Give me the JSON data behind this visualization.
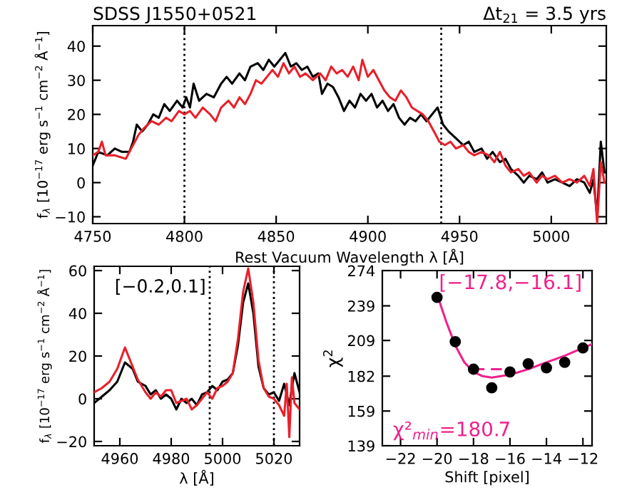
{
  "chart_data": [
    {
      "type": "line",
      "title": "SDSS J1550+0521",
      "subtitle": "Δt$_{21}$ = 3.5 yrs",
      "xlabel": "Rest Vacuum Wavelength λ [Å]",
      "ylabel": "f$_{λ}$ [10$^{−17}$ erg s$^{−1}$ cm$^{−2}$ Å$^{−1}$]",
      "xlim": [
        4750,
        5030
      ],
      "xticks": [
        4750,
        4800,
        4850,
        4900,
        4950,
        5000
      ],
      "ylim": [
        -12,
        46
      ],
      "yticks": [
        -10,
        0,
        10,
        20,
        30,
        40
      ],
      "grid": false,
      "line_style": "solid",
      "marker": "none",
      "ref_lines": [
        {
          "axis": "x",
          "value": 4800,
          "line_style": "dotted",
          "color": "#000000"
        },
        {
          "axis": "x",
          "value": 4940,
          "line_style": "dotted",
          "color": "#000000"
        }
      ],
      "series": [
        {
          "color": "#000000",
          "x": [
            4750,
            4753,
            4758,
            4762,
            4766,
            4770,
            4772,
            4774,
            4777,
            4780,
            4783,
            4786,
            4789,
            4792,
            4796,
            4799,
            4801,
            4803,
            4805,
            4808,
            4812,
            4816,
            4820,
            4823,
            4826,
            4830,
            4833,
            4836,
            4840,
            4843,
            4846,
            4849,
            4852,
            4855,
            4858,
            4861,
            4864,
            4867,
            4870,
            4873,
            4875,
            4878,
            4881,
            4884,
            4887,
            4890,
            4893,
            4896,
            4899,
            4902,
            4905,
            4908,
            4911,
            4914,
            4917,
            4920,
            4923,
            4926,
            4929,
            4932,
            4935,
            4938,
            4941,
            4944,
            4948,
            4952,
            4955,
            4958,
            4962,
            4965,
            4968,
            4972,
            4975,
            4978,
            4982,
            4985,
            4988,
            4992,
            4995,
            4998,
            5002,
            5006,
            5010,
            5014,
            5018,
            5021,
            5023,
            5025,
            5027,
            5029
          ],
          "values": [
            5,
            9,
            8,
            10,
            9,
            9,
            12,
            17,
            15,
            17,
            20,
            19,
            23,
            21,
            24,
            22,
            25,
            22,
            29,
            24,
            26,
            25,
            29,
            31,
            29,
            32,
            30,
            34,
            35,
            33,
            36,
            34,
            36,
            38,
            34,
            35,
            33,
            34,
            31,
            32,
            26,
            29,
            28,
            25,
            21,
            24,
            22,
            26,
            24,
            26,
            22,
            24,
            21,
            23,
            19,
            17,
            19,
            18,
            20,
            18,
            20,
            22,
            17,
            15,
            13,
            11,
            12,
            9,
            10,
            7,
            9,
            6,
            7,
            4,
            2,
            0,
            2,
            1,
            3,
            0,
            1,
            0,
            -1,
            1,
            0,
            -3,
            1,
            -10,
            12,
            3
          ]
        },
        {
          "color": "#e8202a",
          "x": [
            4750,
            4753,
            4755,
            4757,
            4762,
            4768,
            4771,
            4775,
            4778,
            4782,
            4786,
            4790,
            4793,
            4797,
            4800,
            4803,
            4806,
            4810,
            4814,
            4817,
            4820,
            4824,
            4827,
            4830,
            4833,
            4836,
            4839,
            4842,
            4845,
            4848,
            4851,
            4854,
            4857,
            4860,
            4863,
            4866,
            4870,
            4874,
            4877,
            4880,
            4883,
            4886,
            4889,
            4892,
            4895,
            4897,
            4900,
            4903,
            4906,
            4909,
            4912,
            4915,
            4918,
            4921,
            4924,
            4927,
            4930,
            4933,
            4936,
            4939,
            4942,
            4945,
            4948,
            4952,
            4955,
            4958,
            4962,
            4966,
            4969,
            4972,
            4975,
            4978,
            4982,
            4985,
            4988,
            4992,
            4995,
            4998,
            5002,
            5006,
            5010,
            5014,
            5018,
            5021,
            5023,
            5025,
            5027,
            5029
          ],
          "values": [
            8,
            9,
            12,
            8,
            8,
            7,
            10,
            14,
            16,
            18,
            17,
            19,
            18,
            21,
            20,
            21,
            19,
            22,
            20,
            18,
            22,
            24,
            22,
            25,
            23,
            26,
            30,
            29,
            31,
            33,
            31,
            35,
            32,
            34,
            31,
            32,
            30,
            32,
            30,
            34,
            32,
            33,
            31,
            34,
            30,
            36,
            31,
            33,
            30,
            27,
            25,
            24,
            27,
            25,
            22,
            21,
            20,
            18,
            15,
            12,
            11,
            12,
            10,
            11,
            9,
            8,
            9,
            8,
            6,
            9,
            5,
            3,
            4,
            2,
            3,
            0,
            2,
            1,
            2,
            0,
            1,
            0,
            2,
            -1,
            4,
            -12,
            6,
            0
          ]
        }
      ]
    },
    {
      "type": "line",
      "xlabel": "λ [Å]",
      "ylabel": "f$_{λ}$ [10$^{−17}$ erg s$^{−1}$ cm$^{−2}$ Å$^{−1}$]",
      "xlim": [
        4950,
        5030
      ],
      "xticks": [
        4960,
        4980,
        5000,
        5020
      ],
      "ylim": [
        -22,
        62
      ],
      "yticks": [
        -20,
        0,
        20,
        40,
        60
      ],
      "grid": false,
      "line_style": "solid",
      "marker": "none",
      "annotations": [
        "[−0.2,0.1]"
      ],
      "ref_lines": [
        {
          "axis": "x",
          "value": 4995,
          "line_style": "dotted",
          "color": "#000000"
        },
        {
          "axis": "x",
          "value": 5020,
          "line_style": "dotted",
          "color": "#000000"
        }
      ],
      "series": [
        {
          "color": "#000000",
          "x": [
            4950,
            4953,
            4956,
            4959,
            4962,
            4965,
            4967,
            4970,
            4972,
            4974,
            4976,
            4978,
            4980,
            4982,
            4984,
            4986,
            4988,
            4990,
            4992,
            4994,
            4996,
            4998,
            5000,
            5002,
            5004,
            5006,
            5008,
            5010,
            5012,
            5014,
            5016,
            5018,
            5020,
            5022,
            5024,
            5026,
            5027,
            5028,
            5030
          ],
          "values": [
            -2,
            1,
            4,
            8,
            17,
            14,
            8,
            6,
            2,
            4,
            0,
            2,
            0,
            -5,
            0,
            -2,
            0,
            -3,
            2,
            3,
            6,
            4,
            8,
            9,
            12,
            25,
            45,
            54,
            40,
            15,
            5,
            2,
            3,
            -1,
            7,
            -3,
            5,
            12,
            3
          ]
        },
        {
          "color": "#e8202a",
          "x": [
            4950,
            4953,
            4956,
            4959,
            4962,
            4965,
            4967,
            4970,
            4972,
            4974,
            4976,
            4978,
            4980,
            4982,
            4984,
            4986,
            4988,
            4990,
            4992,
            4994,
            4996,
            4998,
            5000,
            5002,
            5004,
            5006,
            5008,
            5010,
            5012,
            5014,
            5016,
            5018,
            5020,
            5022,
            5024,
            5025,
            5026,
            5027,
            5028,
            5030
          ],
          "values": [
            3,
            5,
            8,
            14,
            24,
            15,
            9,
            3,
            0,
            3,
            1,
            4,
            4,
            -2,
            -1,
            0,
            -5,
            -3,
            0,
            3,
            0,
            5,
            6,
            8,
            12,
            28,
            50,
            61,
            45,
            18,
            5,
            1,
            0,
            -3,
            -8,
            7,
            -18,
            10,
            -2,
            -5
          ]
        }
      ]
    },
    {
      "type": "scatter",
      "xlabel": "Shift [pixel]",
      "ylabel": "χ$^{2}$",
      "log": "y",
      "xlim": [
        -23,
        -11.5
      ],
      "xticks": [
        {
          "value": -22,
          "label": "−22"
        },
        {
          "value": -20,
          "label": "−20"
        },
        {
          "value": -18,
          "label": "−18"
        },
        {
          "value": -16,
          "label": "−16"
        },
        {
          "value": -14,
          "label": "−14"
        },
        {
          "value": -12,
          "label": "−12"
        }
      ],
      "ylim": [
        139,
        274
      ],
      "yticks": [
        139,
        159,
        182,
        209,
        239,
        274
      ],
      "grid": false,
      "annotations": [
        "[−17.8,−16.1]",
        "χ²$_{min}$=180.7"
      ],
      "series": [
        {
          "type": "scatter",
          "color": "#000000",
          "marker": "circle",
          "x": [
            -20,
            -19,
            -18,
            -17,
            -16,
            -15,
            -14,
            -13,
            -12
          ],
          "values": [
            247,
            208,
            187,
            174,
            185,
            191,
            188,
            192,
            203
          ]
        },
        {
          "type": "line",
          "color": "#f0208c",
          "marker": "none",
          "line_style": "solid",
          "x": [
            -20,
            -19.5,
            -19,
            -18.5,
            -18,
            -17.5,
            -17,
            -16.5,
            -16,
            -15,
            -14,
            -13,
            -12,
            -11.5
          ],
          "values": [
            250,
            225,
            205,
            192,
            185,
            182,
            181,
            182,
            183,
            187,
            192,
            197,
            203,
            206
          ]
        },
        {
          "type": "line",
          "color": "#f0208c",
          "marker": "none",
          "line_style": "dashed",
          "x": [
            -18,
            -16
          ],
          "values": [
            187,
            187
          ]
        }
      ]
    }
  ]
}
